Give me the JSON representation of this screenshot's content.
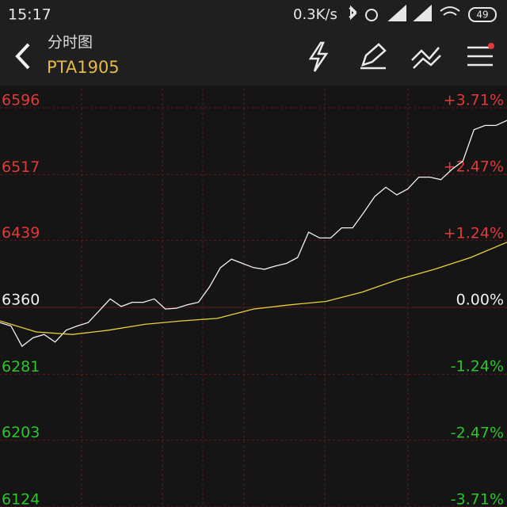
{
  "status_bar": {
    "time": "15:17",
    "speed": "0.3K/s",
    "battery": "49"
  },
  "header": {
    "title": "分时图",
    "symbol": "PTA1905"
  },
  "chart_data": {
    "type": "line",
    "ylim": [
      6124,
      6596
    ],
    "yticks": [
      6596,
      6517,
      6439,
      6360,
      6281,
      6203,
      6124
    ],
    "y2lim": [
      -3.71,
      3.71
    ],
    "y2ticks": [
      {
        "value": 3.71,
        "label": "+3.71%"
      },
      {
        "value": 2.47,
        "label": "+2.47%"
      },
      {
        "value": 1.24,
        "label": "+1.24%"
      },
      {
        "value": 0,
        "label": "0.00%"
      },
      {
        "value": -1.24,
        "label": "-1.24%"
      },
      {
        "value": -2.47,
        "label": "-2.47%"
      },
      {
        "value": -3.71,
        "label": "-3.71%"
      }
    ],
    "up_color": "#e23a3a",
    "down_color": "#2cc52c",
    "flat_color": "#f0f0f0",
    "series": [
      {
        "name": "price",
        "color": "#f2f2f2",
        "values": [
          6342,
          6338,
          6314,
          6324,
          6328,
          6319,
          6333,
          6338,
          6342,
          6356,
          6370,
          6361,
          6366,
          6366,
          6370,
          6358,
          6359,
          6363,
          6366,
          6384,
          6407,
          6417,
          6412,
          6407,
          6405,
          6409,
          6412,
          6419,
          6449,
          6442,
          6442,
          6454,
          6454,
          6472,
          6491,
          6502,
          6493,
          6500,
          6514,
          6514,
          6511,
          6523,
          6533,
          6570,
          6575,
          6575,
          6581
        ]
      },
      {
        "name": "average",
        "color": "#e8d23a",
        "values": [
          6344,
          6331,
          6328,
          6333,
          6340,
          6344,
          6347,
          6358,
          6363,
          6367,
          6378,
          6393,
          6405,
          6419,
          6437
        ]
      }
    ]
  }
}
